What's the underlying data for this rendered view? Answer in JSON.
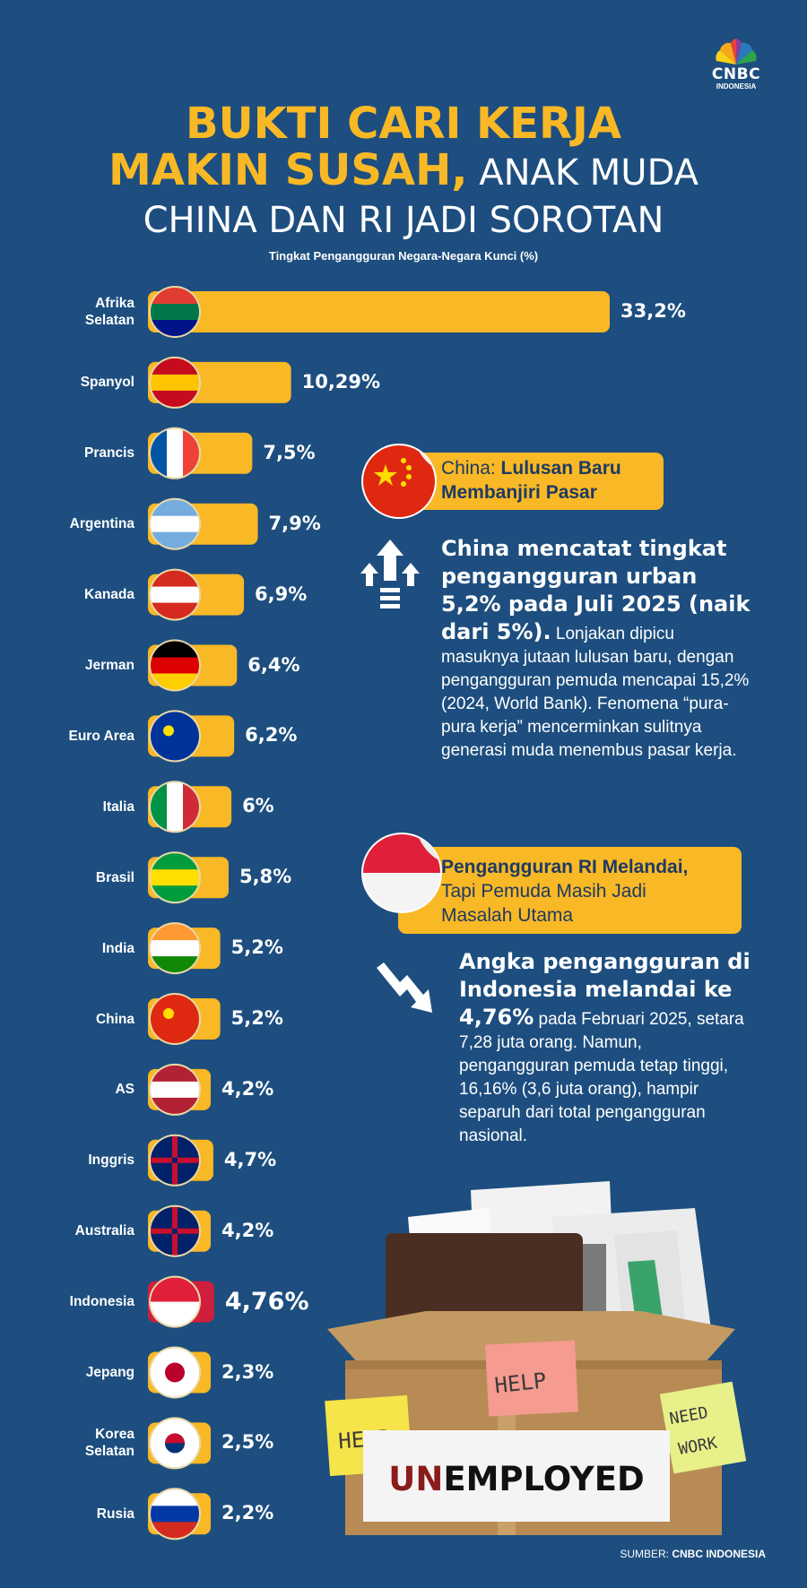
{
  "brand": {
    "name": "CNBC",
    "sub": "INDONESIA"
  },
  "title": {
    "line1": "BUKTI CARI KERJA",
    "line2_bold": "MAKIN SUSAH,",
    "line2_rest": " ANAK MUDA",
    "line3": "CHINA DAN RI JADI SOROTAN"
  },
  "subtitle": "Tingkat Pengangguran Negara-Negara Kunci (%)",
  "chart_data": {
    "type": "bar",
    "orientation": "horizontal",
    "title": "Tingkat Pengangguran Negara-Negara Kunci (%)",
    "categories": [
      "Afrika Selatan",
      "Spanyol",
      "Prancis",
      "Argentina",
      "Kanada",
      "Jerman",
      "Euro Area",
      "Italia",
      "Brasil",
      "India",
      "China",
      "AS",
      "Inggris",
      "Australia",
      "Indonesia",
      "Jepang",
      "Korea Selatan",
      "Rusia"
    ],
    "values": [
      33.2,
      10.29,
      7.5,
      7.9,
      6.9,
      6.4,
      6.2,
      6,
      5.8,
      5.2,
      5.2,
      4.2,
      4.7,
      4.2,
      4.76,
      2.3,
      2.5,
      2.2
    ],
    "value_labels": [
      "33,2%",
      "10,29%",
      "7,5%",
      "7,9%",
      "6,9%",
      "6,4%",
      "6,2%",
      "6%",
      "5,8%",
      "5,2%",
      "5,2%",
      "4,2%",
      "4,7%",
      "4,2%",
      "4,76%",
      "2,3%",
      "2,5%",
      "2,2%"
    ],
    "label_lines": [
      [
        "Afrika",
        "Selatan"
      ],
      [
        "Spanyol"
      ],
      [
        "Prancis"
      ],
      [
        "Argentina"
      ],
      [
        "Kanada"
      ],
      [
        "Jerman"
      ],
      [
        "Euro Area"
      ],
      [
        "Italia"
      ],
      [
        "Brasil"
      ],
      [
        "India"
      ],
      [
        "China"
      ],
      [
        "AS"
      ],
      [
        "Inggris"
      ],
      [
        "Australia"
      ],
      [
        "Indonesia"
      ],
      [
        "Jepang"
      ],
      [
        "Korea",
        "Selatan"
      ],
      [
        "Rusia"
      ]
    ],
    "highlight": "Indonesia",
    "bar_color": "#f9b825",
    "highlight_color": "#d01f3c"
  },
  "china": {
    "card_prefix": "China: ",
    "card_bold_1": "Lulusan Baru",
    "card_bold_2": "Membanjiri Pasar",
    "lead": "China mencatat tingkat pengangguran urban 5,2% pada Juli 2025 (naik dari 5%).",
    "body": " Lonjakan dipicu masuknya jutaan lulusan baru, dengan pengangguran pemuda mencapai 15,2% (2024, World Bank). Fenomena “pura-pura kerja” mencerminkan sulitnya generasi muda menembus pasar kerja."
  },
  "ri": {
    "card_bold": "Pengangguran RI Melandai,",
    "card_rest_1": "Tapi Pemuda Masih Jadi",
    "card_rest_2": "Masalah Utama",
    "lead": "Angka pengangguran di Indonesia melandai ke 4,76%",
    "body": " pada Februari 2025, setara 7,28 juta orang. Namun, pengangguran pemuda tetap tinggi, 16,16% (3,6 juta orang), hampir separuh dari total pengangguran nasional."
  },
  "illustration": {
    "note1": "HELP",
    "note2": "HELP",
    "note3a": "NEED",
    "note3b": "WORK",
    "sign_red": "UN",
    "sign_black": "EMPLOYED"
  },
  "source": {
    "prefix": "SUMBER: ",
    "name": "CNBC INDONESIA"
  },
  "colors": {
    "background": "#1d4e7f",
    "accent": "#f9b825",
    "navy_text": "#1d3a63",
    "highlight": "#d01f3c"
  }
}
